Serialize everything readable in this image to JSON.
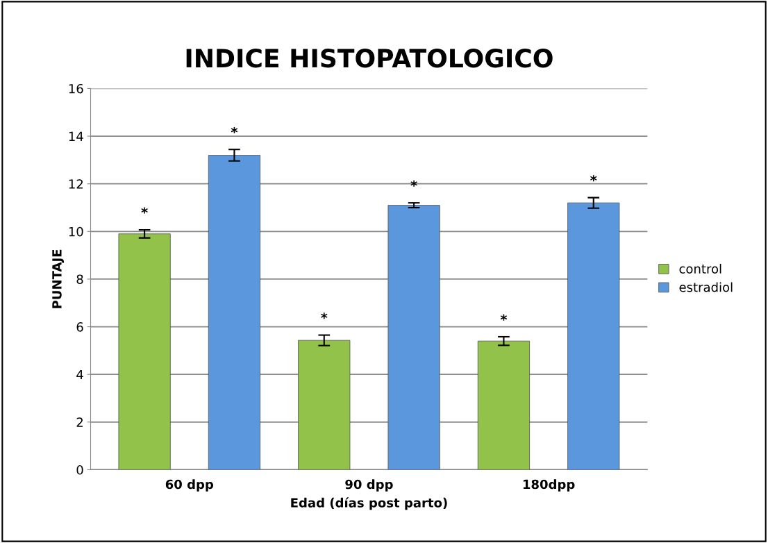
{
  "chart_data": {
    "type": "bar",
    "title": "INDICE HISTOPATOLOGICO",
    "xlabel": "Edad (días post parto)",
    "ylabel": "PUNTAJE",
    "categories": [
      "60 dpp",
      "90 dpp",
      "180dpp"
    ],
    "series": [
      {
        "name": "control",
        "color": "#92c24a",
        "values": [
          9.9,
          5.43,
          5.4
        ],
        "errors": [
          0.17,
          0.22,
          0.18
        ],
        "value_labels": [
          "*",
          "*",
          "*"
        ]
      },
      {
        "name": "estradiol",
        "color": "#5b97dd",
        "values": [
          13.2,
          11.1,
          11.2
        ],
        "errors": [
          0.24,
          0.1,
          0.22
        ],
        "value_labels": [
          "*",
          "*",
          "*"
        ]
      }
    ],
    "ylim": [
      0,
      16
    ],
    "yticks": [
      0,
      2,
      4,
      6,
      8,
      10,
      12,
      14,
      16
    ],
    "grid": "y",
    "legend": "right"
  }
}
